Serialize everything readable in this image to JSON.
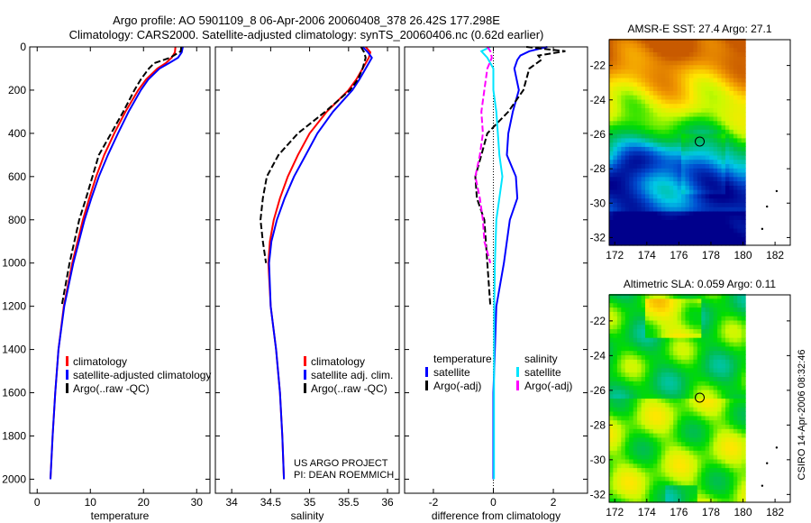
{
  "title_line1": "Argo profile: AO 5901109_8 06-Apr-2006 20060408_378 26.42S 177.298E",
  "title_line2": "Climatology: CARS2000. Satellite-adjusted climatology: synTS_20060406.nc (0.62d earlier)",
  "footer_project": "US ARGO PROJECT",
  "footer_pi": "PI: DEAN ROEMMICH",
  "timestamp": "CSIRO 14-Apr-2006 08:32:46",
  "colors": {
    "climatology": "#ff0000",
    "satellite": "#0000ff",
    "argo": "#000000",
    "sal_satellite": "#00e5ff",
    "sal_argo": "#ff00ff"
  },
  "chart_data": [
    {
      "type": "line",
      "name": "temperature-profile",
      "xlabel": "temperature",
      "ylabel": "",
      "xlim": [
        -1.4,
        32.5
      ],
      "ylim": [
        0,
        2065
      ],
      "y_reversed": true,
      "xticks": [
        0,
        10,
        20,
        30
      ],
      "yticks": [
        0,
        200,
        400,
        600,
        800,
        1000,
        1200,
        1400,
        1600,
        1800,
        2000
      ],
      "legend": [
        "climatology",
        "satellite-adjusted climatology",
        "Argo(..raw -QC)"
      ],
      "series": [
        {
          "name": "climatology",
          "color": "#ff0000",
          "dash": false,
          "depth": [
            0,
            25,
            50,
            75,
            100,
            150,
            200,
            300,
            400,
            500,
            600,
            700,
            800,
            1000,
            1200,
            1400,
            1600,
            1800,
            2000
          ],
          "values": [
            26.0,
            25.9,
            25.3,
            24.2,
            22.6,
            20.5,
            19.0,
            16.6,
            14.5,
            12.6,
            11.1,
            9.8,
            8.6,
            6.6,
            5.0,
            4.0,
            3.4,
            2.9,
            2.5
          ]
        },
        {
          "name": "satellite-adjusted climatology",
          "color": "#0000ff",
          "dash": false,
          "depth": [
            0,
            25,
            50,
            75,
            100,
            150,
            200,
            300,
            400,
            500,
            600,
            700,
            800,
            1000,
            1200,
            1400,
            1600,
            1800,
            2000
          ],
          "values": [
            27.4,
            27.2,
            26.5,
            24.8,
            23.0,
            20.9,
            19.5,
            17.2,
            15.2,
            13.3,
            11.6,
            10.2,
            8.9,
            6.8,
            5.1,
            4.0,
            3.4,
            2.9,
            2.5
          ]
        },
        {
          "name": "Argo(..raw -QC)",
          "color": "#000000",
          "dash": true,
          "depth": [
            0,
            20,
            50,
            75,
            100,
            150,
            200,
            300,
            400,
            500,
            600,
            700,
            800,
            1000,
            1200
          ],
          "values": [
            27.1,
            27.0,
            25.0,
            22.0,
            21.0,
            19.5,
            18.3,
            16.2,
            13.9,
            11.6,
            10.4,
            9.2,
            7.9,
            6.1,
            4.6
          ]
        }
      ]
    },
    {
      "type": "line",
      "name": "salinity-profile",
      "xlabel": "salinity",
      "xlim": [
        33.79,
        36.15
      ],
      "ylim": [
        0,
        2065
      ],
      "y_reversed": true,
      "xticks": [
        34,
        34.5,
        35,
        35.5,
        36
      ],
      "legend": [
        "climatology",
        "satellite adj. clim.",
        "Argo(..raw -QC)"
      ],
      "series": [
        {
          "name": "climatology",
          "color": "#ff0000",
          "dash": false,
          "depth": [
            0,
            25,
            50,
            100,
            150,
            200,
            300,
            400,
            500,
            600,
            700,
            800,
            900,
            1000,
            1200,
            1400,
            1600,
            1800,
            2000
          ],
          "values": [
            35.72,
            35.78,
            35.76,
            35.68,
            35.6,
            35.5,
            35.22,
            35.0,
            34.85,
            34.72,
            34.62,
            34.54,
            34.49,
            34.47,
            34.5,
            34.57,
            34.62,
            34.65,
            34.67
          ]
        },
        {
          "name": "satellite adj. clim.",
          "color": "#0000ff",
          "dash": false,
          "depth": [
            0,
            25,
            50,
            100,
            150,
            200,
            300,
            400,
            500,
            600,
            700,
            800,
            900,
            1000,
            1200,
            1400,
            1600,
            1800,
            2000
          ],
          "values": [
            35.68,
            35.75,
            35.8,
            35.72,
            35.64,
            35.55,
            35.3,
            35.1,
            34.95,
            34.8,
            34.68,
            34.58,
            34.51,
            34.48,
            34.5,
            34.57,
            34.62,
            34.65,
            34.67
          ]
        },
        {
          "name": "Argo(..raw -QC)",
          "color": "#000000",
          "dash": true,
          "depth": [
            0,
            25,
            50,
            100,
            150,
            200,
            300,
            400,
            500,
            600,
            700,
            800,
            900,
            1000
          ],
          "values": [
            35.66,
            35.7,
            35.72,
            35.68,
            35.62,
            35.52,
            35.2,
            34.85,
            34.6,
            34.45,
            34.4,
            34.37,
            34.4,
            34.44
          ]
        }
      ]
    },
    {
      "type": "line",
      "name": "difference-profile",
      "xlabel": "difference from climatology",
      "xlim": [
        -2.96,
        3.14
      ],
      "ylim": [
        0,
        2065
      ],
      "y_reversed": true,
      "xticks": [
        -2,
        0,
        2
      ],
      "legend": {
        "temperature_header": "temperature",
        "salinity_header": "salinity",
        "items": [
          "satellite",
          "Argo(-adj)",
          "satellite",
          "Argo(-adj)"
        ]
      },
      "series": [
        {
          "name": "temperature satellite",
          "color": "#0000ff",
          "dash": false,
          "depth": [
            0,
            20,
            40,
            60,
            100,
            200,
            300,
            400,
            500,
            600,
            700,
            800,
            1000,
            1200,
            1400,
            1600,
            1800,
            2000
          ],
          "values": [
            1.8,
            1.2,
            0.9,
            0.8,
            0.7,
            0.85,
            0.65,
            0.5,
            0.45,
            0.75,
            0.8,
            0.55,
            0.35,
            0.1,
            0.05,
            0.0,
            0.0,
            0.0
          ]
        },
        {
          "name": "temperature Argo(-adj)",
          "color": "#000000",
          "dash": true,
          "depth": [
            0,
            20,
            40,
            60,
            100,
            200,
            300,
            400,
            500,
            600,
            700,
            800,
            1000,
            1200
          ],
          "values": [
            1.1,
            2.4,
            1.5,
            1.6,
            1.2,
            1.0,
            0.5,
            -0.2,
            -0.4,
            -0.6,
            -0.55,
            -0.3,
            -0.2,
            -0.1
          ]
        },
        {
          "name": "salinity satellite",
          "color": "#00e5ff",
          "dash": false,
          "depth": [
            0,
            20,
            50,
            100,
            200,
            300,
            400,
            500,
            600,
            800,
            1000,
            1200,
            1600,
            2000
          ],
          "values": [
            -0.1,
            -0.4,
            -0.2,
            0.0,
            0.0,
            0.1,
            0.15,
            0.2,
            0.3,
            0.1,
            0.05,
            0.03,
            0.02,
            0.02
          ]
        },
        {
          "name": "salinity Argo(-adj)",
          "color": "#ff00ff",
          "dash": true,
          "depth": [
            0,
            20,
            50,
            100,
            200,
            300,
            400,
            500,
            600,
            700,
            800,
            900,
            1000
          ],
          "values": [
            -0.2,
            -0.1,
            -0.05,
            -0.2,
            -0.3,
            -0.4,
            -0.35,
            -0.45,
            -0.6,
            -0.45,
            -0.35,
            -0.3,
            -0.1
          ]
        }
      ]
    },
    {
      "type": "heatmap",
      "name": "sst-map",
      "title": "AMSR-E SST: 27.4 Argo: 27.1",
      "xlim": [
        171.65,
        182.95
      ],
      "ylim": [
        -32.45,
        -20.5
      ],
      "xticks": [
        172,
        174,
        176,
        178,
        180,
        182
      ],
      "yticks": [
        -22,
        -24,
        -26,
        -28,
        -30,
        -32
      ],
      "marker": {
        "lon": 177.3,
        "lat": -26.42
      }
    },
    {
      "type": "heatmap",
      "name": "sla-map",
      "title": "Altimetric SLA: 0.059 Argo: 0.11",
      "xlim": [
        171.65,
        182.95
      ],
      "ylim": [
        -32.45,
        -20.5
      ],
      "xticks": [
        172,
        174,
        176,
        178,
        180,
        182
      ],
      "yticks": [
        -22,
        -24,
        -26,
        -28,
        -30,
        -32
      ],
      "marker": {
        "lon": 177.3,
        "lat": -26.42
      }
    }
  ]
}
